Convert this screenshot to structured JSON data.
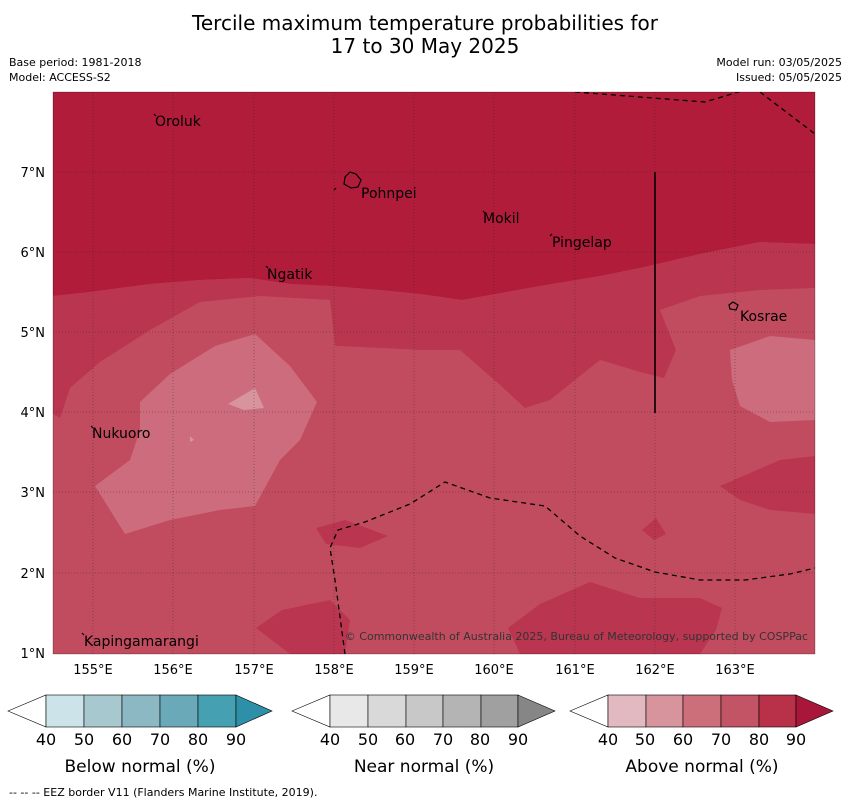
{
  "title_line1": "Tercile maximum temperature probabilities for",
  "title_line2": "17 to 30 May 2025",
  "meta": {
    "base_period": "Base period: 1981-2018",
    "model": "Model: ACCESS-S2",
    "model_run": "Model run: 03/05/2025",
    "issued": "Issued: 05/05/2025"
  },
  "map": {
    "lon_labels": [
      "155°E",
      "156°E",
      "157°E",
      "158°E",
      "159°E",
      "160°E",
      "161°E",
      "162°E",
      "163°E"
    ],
    "lat_labels": [
      "7°N",
      "6°N",
      "5°N",
      "4°N",
      "3°N",
      "2°N",
      "1°N"
    ],
    "places": [
      "Oroluk",
      "Pohnpei",
      "Mokil",
      "Pingelap",
      "Ngatik",
      "Kosrae",
      "Nukuoro",
      "Kapingamarangi"
    ],
    "copyright": "© Commonwealth of Australia 2025, Bureau of Meteorology, supported by COSPPac",
    "colors": {
      "above_90": "#b01c3a",
      "above_80": "#ba3550",
      "above_70": "#c24c5f",
      "above_60": "#cc6c7c",
      "above_50": "#d8949c",
      "above_40": "#e3b8bf"
    }
  },
  "colorbars": [
    {
      "label": "Below normal (%)",
      "ticks": [
        "40",
        "50",
        "60",
        "70",
        "80",
        "90"
      ],
      "colors": [
        "#ffffff",
        "#cbe3e9",
        "#a7c8ce",
        "#8bb8c2",
        "#6aaab8",
        "#45a0b2",
        "#2e8fa8"
      ]
    },
    {
      "label": "Near normal (%)",
      "ticks": [
        "40",
        "50",
        "60",
        "70",
        "80",
        "90"
      ],
      "colors": [
        "#ffffff",
        "#e8e8e8",
        "#d9d9d9",
        "#c8c8c8",
        "#b4b4b4",
        "#a0a0a0",
        "#868686"
      ]
    },
    {
      "label": "Above normal (%)",
      "ticks": [
        "40",
        "50",
        "60",
        "70",
        "80",
        "90"
      ],
      "colors": [
        "#ffffff",
        "#e2b9c0",
        "#d7949c",
        "#cc6f7b",
        "#c25465",
        "#b93049",
        "#a8173a"
      ]
    }
  ],
  "footer": "--  --  -- EEZ border V11 (Flanders Marine Institute, 2019)."
}
